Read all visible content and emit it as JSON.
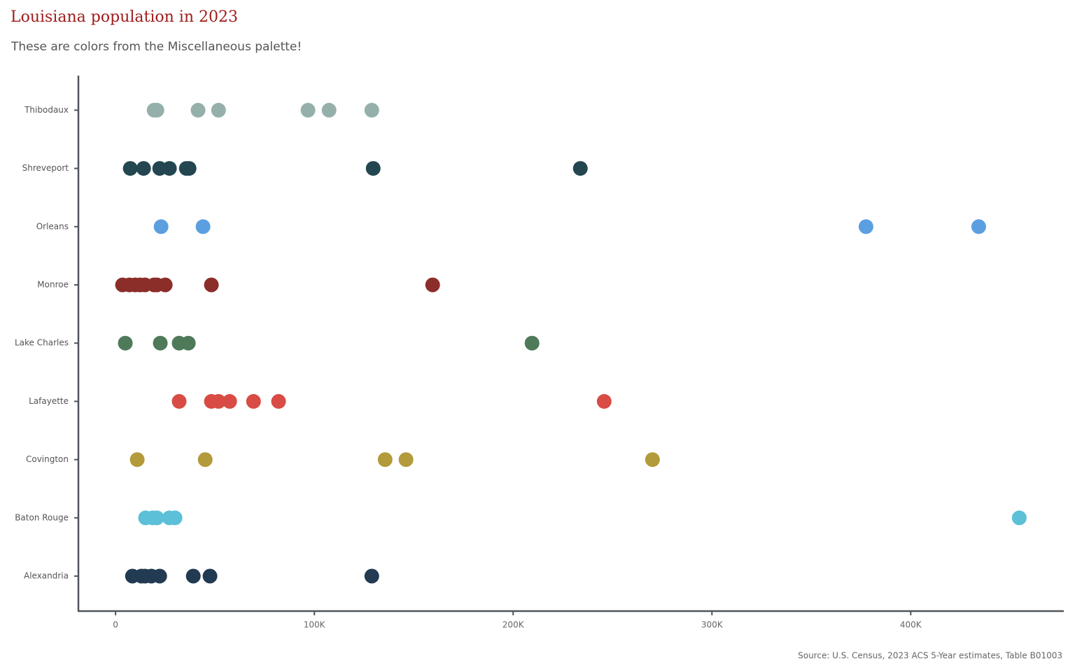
{
  "chart_data": {
    "type": "strip",
    "title": "Louisiana population in 2023",
    "subtitle": "These are colors  from the Miscellaneous palette!",
    "source": "Source: U.S. Census,  2023 ACS 5-Year estimates,  Table B01003",
    "xlim": [
      -18700,
      477000
    ],
    "xticks": [
      0,
      {
        "value": 100000,
        "label": "100K"
      },
      {
        "value": 200000,
        "label": "200K"
      },
      {
        "value": 300000,
        "label": "300K"
      },
      {
        "value": 400000,
        "label": "400K"
      }
    ],
    "series": [
      {
        "name": "Alexandria",
        "color": "#223a52",
        "values": [
          8500,
          13000,
          14800,
          18000,
          22200,
          39100,
          47500,
          128900
        ]
      },
      {
        "name": "Baton Rouge",
        "color": "#5bc0d8",
        "values": [
          15100,
          18700,
          20800,
          27100,
          29900,
          454600
        ]
      },
      {
        "name": "Covington",
        "color": "#b39a3a",
        "values": [
          10900,
          45100,
          135600,
          146100,
          270100
        ]
      },
      {
        "name": "Lafayette",
        "color": "#d84c45",
        "values": [
          32000,
          48200,
          51800,
          57400,
          69400,
          82000,
          245800
        ]
      },
      {
        "name": "Lake Charles",
        "color": "#4e7a5a",
        "values": [
          4900,
          22500,
          32000,
          36600,
          209500
        ]
      },
      {
        "name": "Monroe",
        "color": "#8b2e2a",
        "values": [
          3500,
          7000,
          9900,
          12300,
          14800,
          19400,
          20800,
          25000,
          48200,
          159500
        ]
      },
      {
        "name": "Orleans",
        "color": "#5b9fe0",
        "values": [
          22900,
          44000,
          377500,
          434200
        ]
      },
      {
        "name": "Shreveport",
        "color": "#234650",
        "values": [
          7400,
          14100,
          22200,
          27100,
          35600,
          37000,
          129600,
          233800
        ]
      },
      {
        "name": "Thibodaux",
        "color": "#95b0ab",
        "values": [
          19400,
          20800,
          41500,
          51800,
          96800,
          107400,
          128900
        ]
      }
    ]
  }
}
